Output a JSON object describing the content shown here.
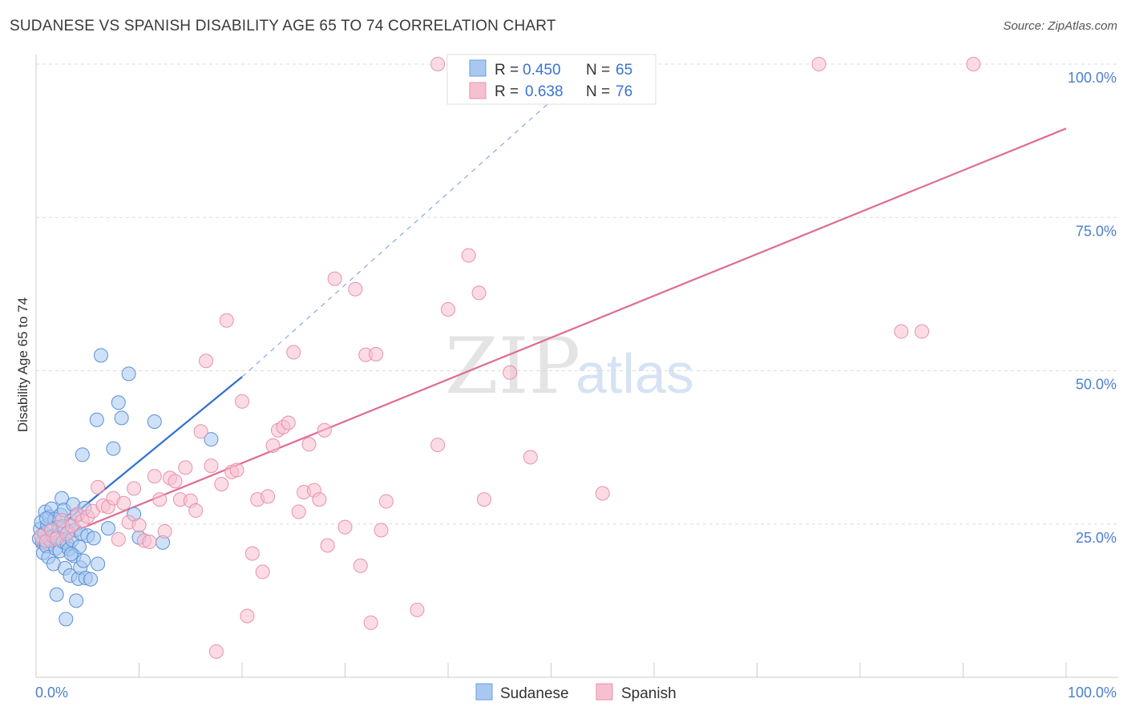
{
  "title": "SUDANESE VS SPANISH DISABILITY AGE 65 TO 74 CORRELATION CHART",
  "source": "Source: ZipAtlas.com",
  "watermark": {
    "part1": "ZIP",
    "part2": "atlas"
  },
  "chart_data": {
    "type": "scatter",
    "ylabel": "Disability Age 65 to 74",
    "xlim": [
      0,
      100
    ],
    "ylim": [
      0,
      104
    ],
    "x_tick_labels": [
      "0.0%",
      "100.0%"
    ],
    "y_ticks": [
      25,
      50,
      75,
      100
    ],
    "y_tick_labels": [
      "25.0%",
      "50.0%",
      "75.0%",
      "100.0%"
    ],
    "grid": true,
    "legend_top": [
      {
        "r_label": "R =",
        "r_value": "0.450",
        "n_label": "N =",
        "n_value": "65",
        "color": "#a8c8f0",
        "edge": "#6a9ee0"
      },
      {
        "r_label": "R =",
        "r_value": "0.638",
        "n_label": "N =",
        "n_value": "76",
        "color": "#f7c0d0",
        "edge": "#e890ac"
      }
    ],
    "series": [
      {
        "name": "Sudanese",
        "color": "#a8c8f0",
        "edge": "#5b8fd8",
        "trend": {
          "x": [
            0,
            20
          ],
          "y": [
            21.5,
            49.0
          ],
          "dash_to": [
            54,
            100
          ],
          "color": "#2f6fcf"
        },
        "points": [
          [
            0.3,
            22.6
          ],
          [
            0.4,
            24.2
          ],
          [
            0.5,
            25.3
          ],
          [
            0.6,
            22.0
          ],
          [
            0.7,
            20.3
          ],
          [
            0.8,
            23.5
          ],
          [
            0.9,
            27.0
          ],
          [
            1.0,
            21.4
          ],
          [
            1.1,
            24.8
          ],
          [
            1.2,
            19.6
          ],
          [
            1.3,
            26.2
          ],
          [
            1.4,
            22.3
          ],
          [
            1.5,
            27.5
          ],
          [
            1.6,
            23.0
          ],
          [
            1.7,
            18.5
          ],
          [
            1.8,
            25.8
          ],
          [
            1.9,
            21.0
          ],
          [
            2.0,
            13.5
          ],
          [
            2.1,
            22.8
          ],
          [
            2.2,
            24.5
          ],
          [
            2.3,
            20.6
          ],
          [
            2.4,
            26.5
          ],
          [
            2.5,
            29.2
          ],
          [
            2.6,
            22.1
          ],
          [
            2.7,
            27.3
          ],
          [
            2.8,
            17.8
          ],
          [
            2.9,
            9.5
          ],
          [
            3.0,
            21.8
          ],
          [
            3.1,
            23.7
          ],
          [
            3.2,
            20.9
          ],
          [
            3.3,
            16.6
          ],
          [
            3.4,
            25.5
          ],
          [
            3.5,
            22.4
          ],
          [
            3.6,
            28.2
          ],
          [
            3.7,
            19.8
          ],
          [
            3.8,
            24.0
          ],
          [
            3.9,
            12.5
          ],
          [
            4.0,
            26.4
          ],
          [
            4.1,
            16.1
          ],
          [
            4.2,
            21.3
          ],
          [
            4.3,
            17.9
          ],
          [
            4.4,
            23.4
          ],
          [
            4.5,
            36.3
          ],
          [
            4.6,
            19.0
          ],
          [
            4.7,
            27.6
          ],
          [
            4.8,
            16.2
          ],
          [
            5.0,
            23.1
          ],
          [
            5.3,
            16.0
          ],
          [
            5.6,
            22.7
          ],
          [
            5.9,
            42.0
          ],
          [
            6.0,
            18.5
          ],
          [
            6.3,
            52.5
          ],
          [
            7.0,
            24.3
          ],
          [
            7.5,
            37.3
          ],
          [
            8.0,
            44.8
          ],
          [
            8.3,
            42.3
          ],
          [
            9.0,
            49.5
          ],
          [
            9.5,
            26.6
          ],
          [
            10.0,
            22.8
          ],
          [
            11.5,
            41.7
          ],
          [
            12.3,
            22.0
          ],
          [
            17.0,
            38.8
          ],
          [
            3.4,
            20.1
          ],
          [
            1.0,
            25.9
          ],
          [
            2.6,
            24.6
          ]
        ]
      },
      {
        "name": "Spanish",
        "color": "#f7c0d0",
        "edge": "#e890ac",
        "trend": {
          "x": [
            0,
            100
          ],
          "y": [
            21.3,
            89.5
          ],
          "color": "#e06a95"
        },
        "points": [
          [
            0.5,
            23.0
          ],
          [
            1.0,
            22.2
          ],
          [
            1.5,
            24.0
          ],
          [
            2.0,
            22.6
          ],
          [
            2.5,
            25.6
          ],
          [
            3.0,
            23.4
          ],
          [
            3.5,
            24.7
          ],
          [
            4.0,
            26.6
          ],
          [
            4.5,
            25.5
          ],
          [
            5.0,
            26.2
          ],
          [
            5.5,
            27.1
          ],
          [
            6.0,
            31.0
          ],
          [
            6.5,
            28.0
          ],
          [
            7.0,
            27.8
          ],
          [
            7.5,
            29.2
          ],
          [
            8.0,
            22.5
          ],
          [
            8.5,
            28.4
          ],
          [
            9.0,
            25.3
          ],
          [
            9.5,
            30.8
          ],
          [
            10.0,
            24.8
          ],
          [
            10.5,
            22.3
          ],
          [
            11.0,
            22.1
          ],
          [
            11.5,
            32.8
          ],
          [
            12.0,
            29.0
          ],
          [
            12.5,
            23.8
          ],
          [
            13.0,
            32.5
          ],
          [
            13.5,
            32.0
          ],
          [
            14.0,
            29.0
          ],
          [
            14.5,
            34.2
          ],
          [
            15.0,
            28.8
          ],
          [
            15.5,
            27.2
          ],
          [
            16.0,
            40.1
          ],
          [
            16.5,
            51.6
          ],
          [
            17.0,
            34.5
          ],
          [
            17.5,
            4.2
          ],
          [
            18.0,
            31.5
          ],
          [
            18.5,
            58.2
          ],
          [
            19.0,
            33.5
          ],
          [
            19.5,
            33.8
          ],
          [
            20.0,
            45.0
          ],
          [
            20.5,
            10.0
          ],
          [
            21.0,
            20.2
          ],
          [
            21.5,
            29.0
          ],
          [
            22.0,
            17.2
          ],
          [
            22.5,
            29.5
          ],
          [
            23.0,
            37.8
          ],
          [
            23.5,
            40.3
          ],
          [
            24.0,
            40.8
          ],
          [
            24.5,
            41.5
          ],
          [
            25.0,
            53.0
          ],
          [
            25.5,
            27.0
          ],
          [
            26.0,
            30.2
          ],
          [
            26.5,
            38.0
          ],
          [
            27.0,
            30.5
          ],
          [
            27.5,
            29.0
          ],
          [
            28.0,
            40.3
          ],
          [
            28.3,
            21.5
          ],
          [
            29.0,
            65.0
          ],
          [
            30.0,
            24.5
          ],
          [
            31.0,
            63.3
          ],
          [
            31.5,
            18.2
          ],
          [
            32.0,
            52.6
          ],
          [
            32.5,
            8.9
          ],
          [
            33.0,
            52.7
          ],
          [
            33.5,
            24.0
          ],
          [
            34.0,
            28.7
          ],
          [
            37.0,
            11.0
          ],
          [
            39.0,
            37.9
          ],
          [
            40.0,
            60.0
          ],
          [
            42.0,
            68.8
          ],
          [
            43.0,
            62.7
          ],
          [
            43.5,
            29.0
          ],
          [
            46.0,
            49.7
          ],
          [
            48.0,
            35.9
          ],
          [
            55.0,
            30.0
          ],
          [
            84.0,
            56.4
          ]
        ],
        "top_points": [
          [
            39.0,
            100.0
          ],
          [
            76.0,
            100.0
          ],
          [
            91.0,
            100.0
          ],
          [
            53.5,
            100.0
          ],
          [
            86.0,
            56.4
          ]
        ]
      }
    ]
  },
  "bottom_legend": [
    {
      "label": "Sudanese",
      "color": "#a8c8f0",
      "edge": "#6a9ee0"
    },
    {
      "label": "Spanish",
      "color": "#f7c0d0",
      "edge": "#e890ac"
    }
  ]
}
